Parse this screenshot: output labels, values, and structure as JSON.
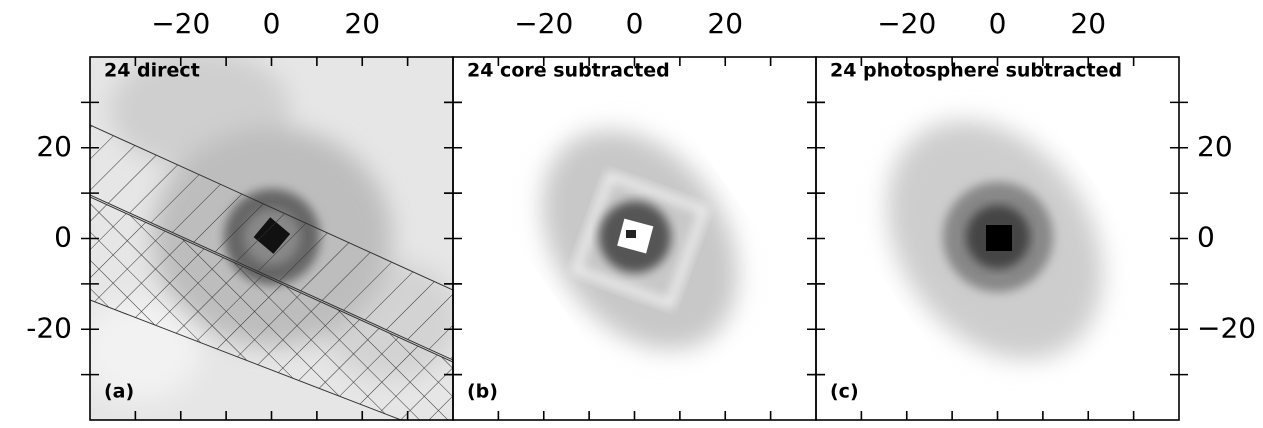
{
  "chart_data": [
    {
      "type": "image",
      "annotation": "24 direct",
      "panel_label": "(a)",
      "xlim": [
        -40,
        40
      ],
      "ylim": [
        -40,
        40
      ],
      "xticks": [
        {
          "value": -20,
          "label": "−20"
        },
        0,
        20
      ],
      "minor_ticks": [
        -30,
        -10,
        10,
        30
      ],
      "yticks": [
        -20,
        0,
        20
      ]
    },
    {
      "type": "image",
      "annotation": "24 core subtracted",
      "panel_label": "(b)",
      "xlim": [
        -40,
        40
      ],
      "ylim": [
        -40,
        40
      ],
      "xticks": [
        {
          "value": -20,
          "label": "−20"
        },
        0,
        20
      ],
      "minor_ticks": [
        -30,
        -10,
        10,
        30
      ]
    },
    {
      "type": "image",
      "annotation": "24 photosphere subtracted",
      "panel_label": "(c)",
      "xlim": [
        -40,
        40
      ],
      "ylim": [
        -40,
        40
      ],
      "xticks": [
        {
          "value": -20,
          "label": "−20"
        },
        0,
        20
      ],
      "minor_ticks": [
        -30,
        -10,
        10,
        30
      ],
      "y2lim": [
        -40,
        40
      ],
      "y2ticks": [
        {
          "value": -20,
          "label": "−20"
        },
        0,
        20
      ]
    }
  ]
}
